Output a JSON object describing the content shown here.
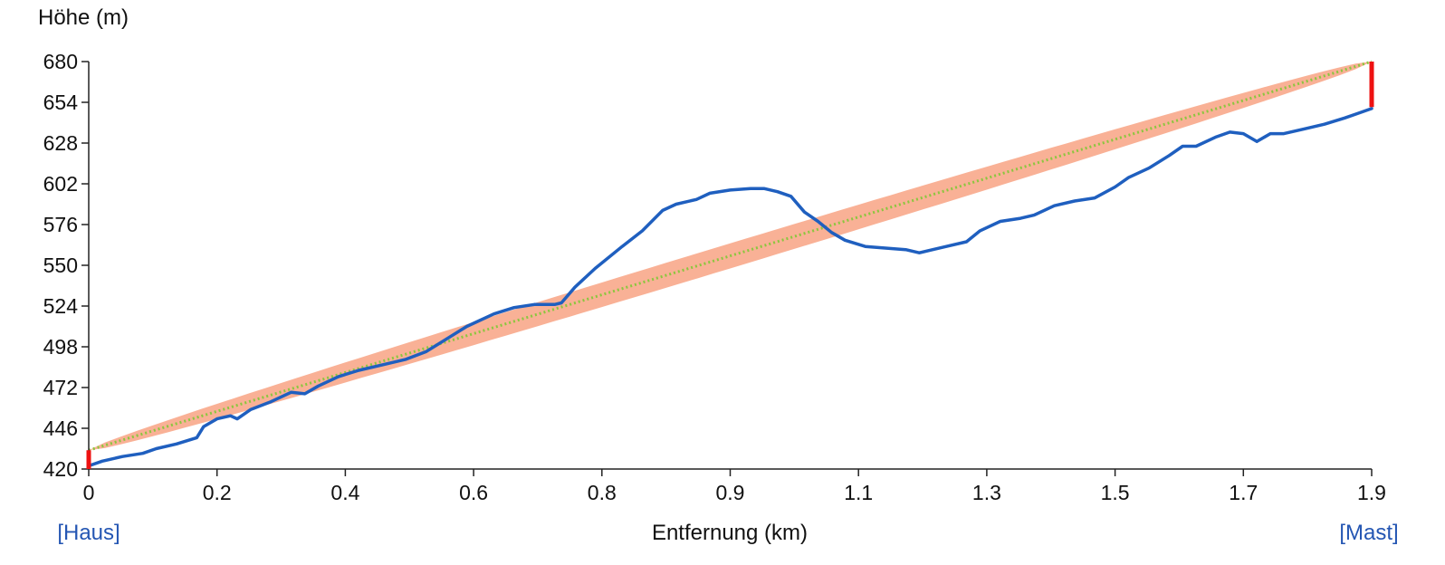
{
  "chart_data": {
    "type": "line",
    "xlabel": "Entfernung (km)",
    "ylabel": "Höhe (m)",
    "y_ticks": [
      420,
      446,
      472,
      498,
      524,
      550,
      576,
      602,
      628,
      654,
      680
    ],
    "x_ticks": [
      "0",
      "0.2",
      "0.4",
      "0.6",
      "0.8",
      "0.9",
      "1.1",
      "1.3",
      "1.5",
      "1.7",
      "1.9"
    ],
    "ylim": [
      420,
      680
    ],
    "xlim": [
      0,
      1.9
    ],
    "start_label": "[Haus]",
    "end_label": "[Mast]",
    "start_antenna": {
      "x": 0,
      "from": 420,
      "to": 432
    },
    "end_antenna": {
      "x": 1.9,
      "from": 651,
      "to": 680
    },
    "line_of_sight": {
      "from": [
        0,
        432
      ],
      "to": [
        1.9,
        680
      ]
    },
    "fresnel_zone_max_halfwidth_m": 8,
    "colors": {
      "terrain": "#1f5fbf",
      "fresnel": "#f9b196",
      "line_of_sight": "#8cc63f",
      "antenna": "#ee1111",
      "axis": "#222222"
    },
    "series": [
      {
        "x": [
          0,
          0.02,
          0.05,
          0.08,
          0.1,
          0.13,
          0.16,
          0.17,
          0.19,
          0.21,
          0.22,
          0.24,
          0.27,
          0.3,
          0.32,
          0.34,
          0.37,
          0.4,
          0.43,
          0.47,
          0.5,
          0.53,
          0.56,
          0.6,
          0.63,
          0.66,
          0.69,
          0.7,
          0.72,
          0.75,
          0.79,
          0.82,
          0.85,
          0.87,
          0.9,
          0.92,
          0.95,
          0.98,
          1.0,
          1.02,
          1.04,
          1.06,
          1.08,
          1.1,
          1.12,
          1.15,
          1.18,
          1.21,
          1.23,
          1.25,
          1.27,
          1.3,
          1.32,
          1.35,
          1.38,
          1.4,
          1.43,
          1.46,
          1.49,
          1.52,
          1.54,
          1.57,
          1.6,
          1.62,
          1.64,
          1.67,
          1.69,
          1.71,
          1.73,
          1.75,
          1.77,
          1.8,
          1.83,
          1.86,
          1.88,
          1.9
        ],
        "y": [
          422,
          425,
          428,
          430,
          433,
          436,
          440,
          447,
          452,
          454,
          452,
          458,
          463,
          469,
          468,
          473,
          479,
          483,
          486,
          490,
          495,
          503,
          511,
          519,
          523,
          525,
          525,
          526,
          536,
          548,
          562,
          572,
          585,
          589,
          592,
          596,
          598,
          599,
          599,
          597,
          594,
          584,
          578,
          571,
          566,
          562,
          561,
          560,
          558,
          560,
          562,
          565,
          572,
          578,
          580,
          582,
          588,
          591,
          593,
          600,
          606,
          612,
          620,
          626,
          626,
          632,
          635,
          634,
          629,
          634,
          634,
          637,
          640,
          644,
          647,
          650
        ]
      }
    ]
  }
}
